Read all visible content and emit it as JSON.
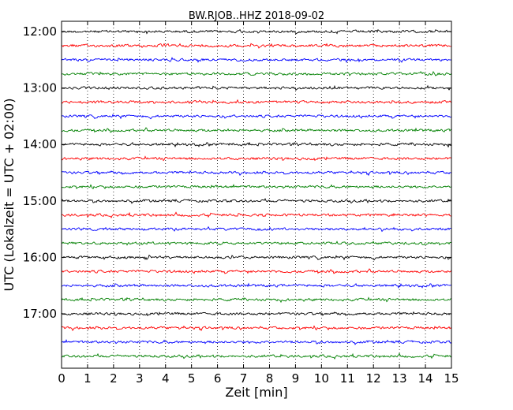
{
  "chart_data": {
    "type": "line",
    "title": "BW.RJOB..HHZ 2018-09-02",
    "xlabel": "Zeit  [min]",
    "ylabel": "UTC (Lokalzeit = UTC + 02:00)",
    "xlim": [
      0,
      15
    ],
    "x_ticks": [
      "0",
      "1",
      "2",
      "3",
      "4",
      "5",
      "6",
      "7",
      "8",
      "9",
      "10",
      "11",
      "12",
      "13",
      "14",
      "15"
    ],
    "y_ticks": [
      "12:00",
      "13:00",
      "14:00",
      "15:00",
      "16:00",
      "17:00"
    ],
    "trace_start_times": [
      "12:00",
      "12:15",
      "12:30",
      "12:45",
      "13:00",
      "13:15",
      "13:30",
      "13:45",
      "14:00",
      "14:15",
      "14:30",
      "14:45",
      "15:00",
      "15:15",
      "15:30",
      "15:45",
      "16:00",
      "16:15",
      "16:30",
      "16:45",
      "17:00",
      "17:15",
      "17:30",
      "17:45"
    ],
    "trace_colors": [
      "#000000",
      "#ff0000",
      "#0000ff",
      "#008000"
    ],
    "grid": "vertical dotted at each minute"
  }
}
